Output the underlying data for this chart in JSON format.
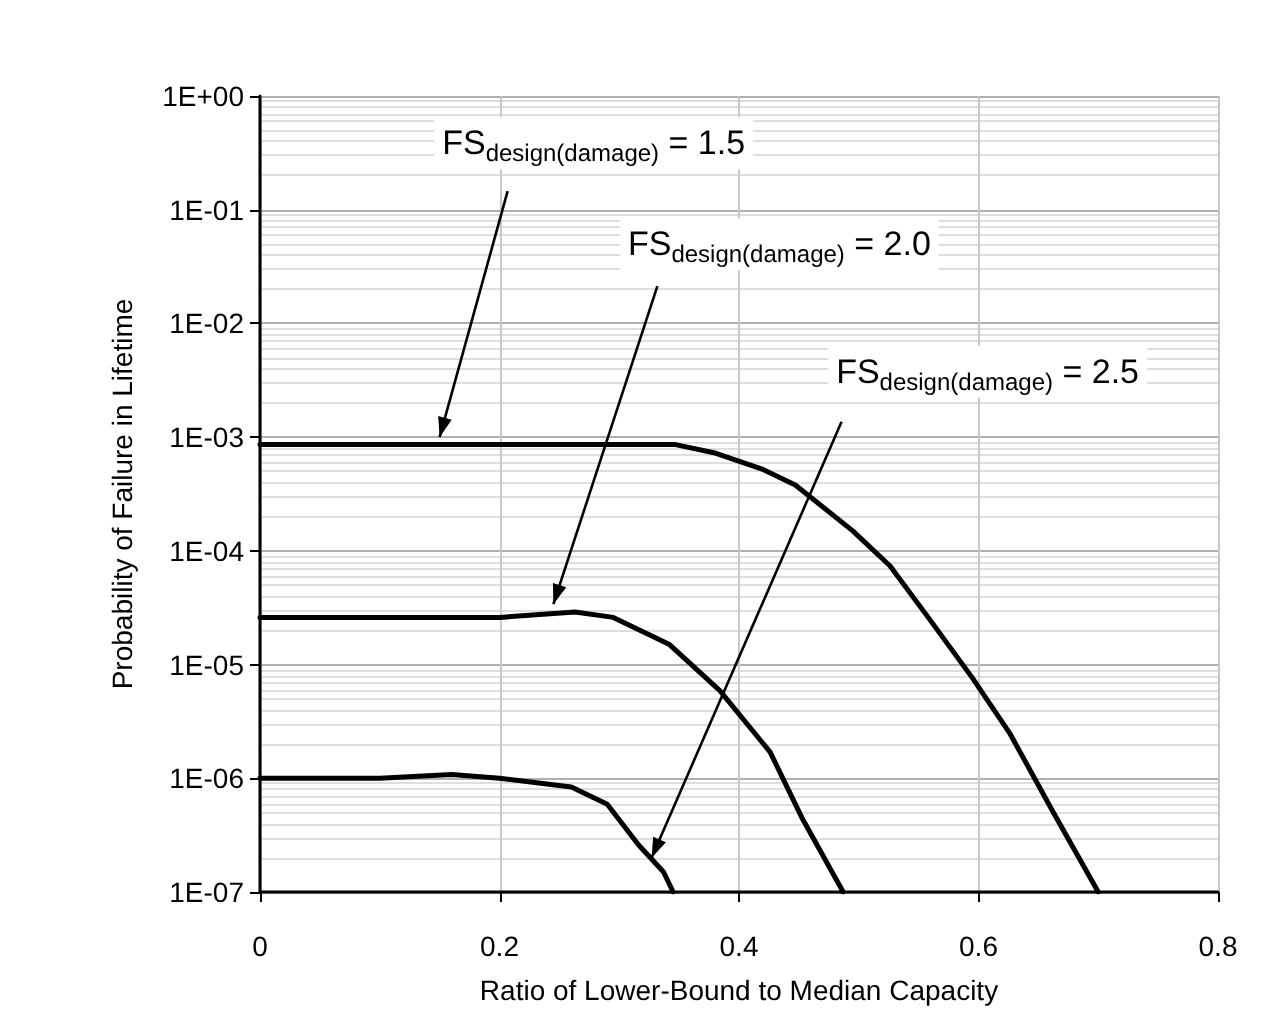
{
  "chart_data": {
    "type": "line",
    "xlabel": "Ratio of Lower-Bound to Median Capacity",
    "ylabel": "Probability of Failure in Lifetime",
    "log": "y",
    "grid": true,
    "marker": "none",
    "line_style": "solid",
    "xlim": [
      0,
      0.8
    ],
    "xticks": [
      0,
      0.2,
      0.4,
      0.6,
      0.8
    ],
    "ylim": [
      1e-07,
      1
    ],
    "yticks": [
      {
        "value": 1e-07,
        "label": "1E-07"
      },
      {
        "value": 1e-06,
        "label": "1E-06"
      },
      {
        "value": 1e-05,
        "label": "1E-05"
      },
      {
        "value": 0.0001,
        "label": "1E-04"
      },
      {
        "value": 0.001,
        "label": "1E-03"
      },
      {
        "value": 0.01,
        "label": "1E-02"
      },
      {
        "value": 0.1,
        "label": "1E-01"
      },
      {
        "value": 1,
        "label": "1E+00"
      }
    ],
    "series": [
      {
        "color": "#000000",
        "x": [
          0,
          0.1,
          0.2,
          0.3,
          0.347,
          0.379,
          0.42,
          0.447,
          0.495,
          0.526,
          0.558,
          0.595,
          0.626,
          0.663,
          0.7
        ],
        "values": [
          0.00086,
          0.00086,
          0.00086,
          0.00086,
          0.00086,
          0.00073,
          0.00052,
          0.00038,
          0.00015,
          7.4e-05,
          2.6e-05,
          7.6e-06,
          2.5e-06,
          4.9e-07,
          1e-07
        ]
      },
      {
        "color": "#000000",
        "x": [
          0,
          0.1,
          0.2,
          0.263,
          0.295,
          0.342,
          0.384,
          0.426,
          0.453,
          0.487
        ],
        "values": [
          2.6e-05,
          2.6e-05,
          2.6e-05,
          2.9e-05,
          2.6e-05,
          1.5e-05,
          5.9e-06,
          1.7e-06,
          4.4e-07,
          1e-07
        ]
      },
      {
        "color": "#000000",
        "x": [
          0,
          0.1,
          0.16,
          0.2,
          0.26,
          0.29,
          0.316,
          0.337,
          0.345
        ],
        "values": [
          1e-06,
          1e-06,
          1.08e-06,
          1e-06,
          8.4e-07,
          5.9e-07,
          2.6e-07,
          1.5e-07,
          1e-07
        ]
      }
    ],
    "annotations": [
      {
        "text": "FS$_{design(damage)}$ = 1.5",
        "x": 0.15,
        "y": 0.001
      },
      {
        "text": "FS$_{design(damage)}$ = 2.0",
        "x": 0.245,
        "y": 3.4e-05
      },
      {
        "text": "FS$_{design(damage)}$ = 2.5",
        "x": 0.327,
        "y": 2e-07
      }
    ]
  }
}
